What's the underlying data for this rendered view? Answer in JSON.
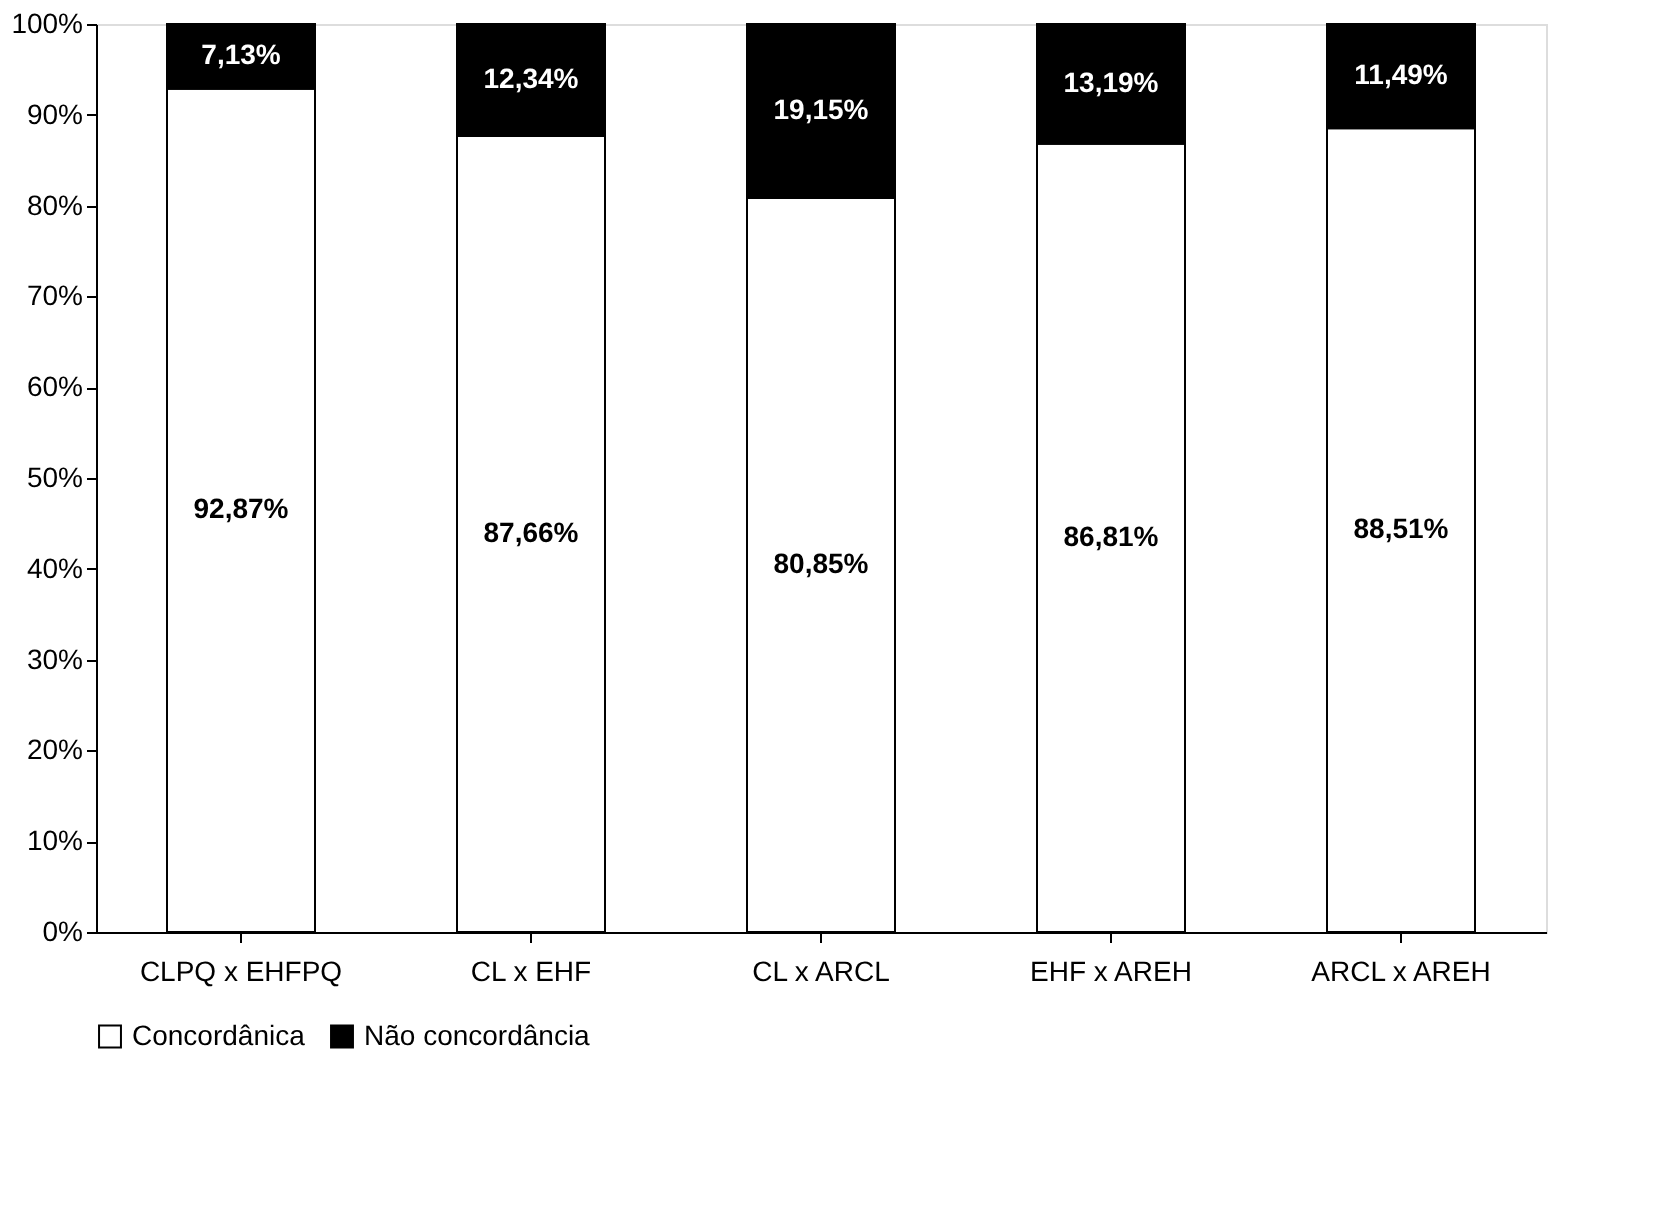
{
  "chart_data": {
    "type": "bar",
    "stacked": true,
    "categories": [
      "CLPQ x EHFPQ",
      "CL x EHF",
      "CL x ARCL",
      "EHF x AREH",
      "ARCL x AREH"
    ],
    "series": [
      {
        "name": "Concordânica",
        "color": "#ffffff",
        "values": [
          92.87,
          87.66,
          80.85,
          86.81,
          88.51
        ],
        "value_labels": [
          "92,87%",
          "87,66%",
          "80,85%",
          "86,81%",
          "88,51%"
        ]
      },
      {
        "name": "Não concordância",
        "color": "#000000",
        "values": [
          7.13,
          12.34,
          19.15,
          13.19,
          11.49
        ],
        "value_labels": [
          "7,13%",
          "12,34%",
          "19,15%",
          "13,19%",
          "11,49%"
        ]
      }
    ],
    "ylim": [
      0,
      100
    ],
    "yticks": [
      {
        "value": 0,
        "label": "0%"
      },
      {
        "value": 10,
        "label": "10%"
      },
      {
        "value": 20,
        "label": "20%"
      },
      {
        "value": 30,
        "label": "30%"
      },
      {
        "value": 40,
        "label": "40%"
      },
      {
        "value": 50,
        "label": "50%"
      },
      {
        "value": 60,
        "label": "60%"
      },
      {
        "value": 70,
        "label": "70%"
      },
      {
        "value": 80,
        "label": "80%"
      },
      {
        "value": 90,
        "label": "90%"
      },
      {
        "value": 100,
        "label": "100%"
      }
    ],
    "grid": false,
    "legend": "bottom"
  }
}
